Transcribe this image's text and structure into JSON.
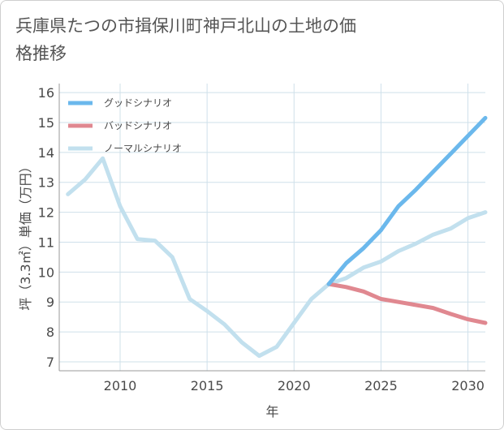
{
  "title": "兵庫県たつの市揖保川町神戸北山の土地の価格推移",
  "colors": {
    "good": "#6bb8ec",
    "bad": "#e08890",
    "normal": "#c2e0ee",
    "grid": "#cfe0ea",
    "frame": "#9a9a9a"
  },
  "chart_data": {
    "type": "line",
    "title": "兵庫県たつの市揖保川町神戸北山の土地の価格推移",
    "xlabel": "年",
    "ylabel": "坪（3.3㎡）単価（万円）",
    "xlim": [
      2006.5,
      2031
    ],
    "ylim": [
      6.7,
      16.3
    ],
    "xticks": [
      2010,
      2015,
      2020,
      2025,
      2030
    ],
    "yticks": [
      7,
      8,
      9,
      10,
      11,
      12,
      13,
      14,
      15,
      16
    ],
    "legend_position": "top-left",
    "grid": true,
    "series": [
      {
        "name": "グッドシナリオ",
        "key": "good",
        "x": [
          2022,
          2023,
          2024,
          2025,
          2026,
          2027,
          2028,
          2029,
          2030,
          2031
        ],
        "y": [
          9.6,
          10.3,
          10.8,
          11.4,
          12.2,
          12.75,
          13.35,
          13.95,
          14.55,
          15.15
        ]
      },
      {
        "name": "バッドシナリオ",
        "key": "bad",
        "x": [
          2022,
          2023,
          2024,
          2025,
          2026,
          2027,
          2028,
          2029,
          2030,
          2031
        ],
        "y": [
          9.6,
          9.5,
          9.35,
          9.1,
          9.0,
          8.9,
          8.8,
          8.6,
          8.42,
          8.3
        ]
      },
      {
        "name": "ノーマルシナリオ",
        "key": "normal",
        "x": [
          2007,
          2008,
          2009,
          2010,
          2011,
          2012,
          2013,
          2014,
          2015,
          2016,
          2017,
          2018,
          2019,
          2020,
          2021,
          2022,
          2023,
          2024,
          2025,
          2026,
          2027,
          2028,
          2029,
          2030,
          2031
        ],
        "y": [
          12.6,
          13.1,
          13.8,
          12.2,
          11.1,
          11.05,
          10.5,
          9.1,
          8.7,
          8.25,
          7.65,
          7.2,
          7.5,
          8.3,
          9.1,
          9.6,
          9.8,
          10.15,
          10.35,
          10.7,
          10.95,
          11.25,
          11.45,
          11.8,
          12.0
        ]
      }
    ]
  }
}
